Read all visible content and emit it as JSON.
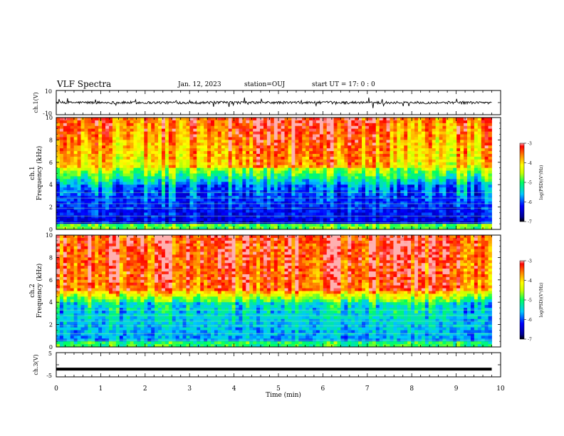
{
  "header": {
    "title": "VLF Spectra",
    "date": "Jan. 12, 2023",
    "station": "station=OUJ",
    "start": "start  UT =  17: 0  : 0"
  },
  "chart_data": [
    {
      "type": "line",
      "ylabel": "ch.1(V)",
      "ylim": [
        -10,
        10
      ],
      "yticks": [
        "10",
        "-10"
      ],
      "description_series": [
        {
          "values": [
            0
          ]
        }
      ],
      "xlim": [
        0,
        10
      ],
      "data_xmax": 9.8
    },
    {
      "type": "heatmap",
      "ylabel_line1": "ch.1",
      "ylabel_line2": "Frequency  (kHz)",
      "ylim": [
        0,
        10
      ],
      "yticks": [
        "0",
        "2",
        "4",
        "6",
        "8",
        "10"
      ],
      "xlim": [
        0,
        10
      ],
      "data_xmax": 9.8,
      "colorbar": {
        "label": "log(PSD)(V²/Hz)",
        "range": [
          -7,
          -3
        ],
        "ticks": [
          "-3",
          "-4",
          "-5",
          "-6",
          "-7"
        ]
      }
    },
    {
      "type": "heatmap",
      "ylabel_line1": "ch.2",
      "ylabel_line2": "Frequency  (kHz)",
      "ylim": [
        0,
        10
      ],
      "yticks": [
        "0",
        "2",
        "4",
        "6",
        "8",
        "10"
      ],
      "xlim": [
        0,
        10
      ],
      "data_xmax": 9.8,
      "colorbar": {
        "label": "log(PSD)(V²/Hz)",
        "range": [
          -7,
          -3
        ],
        "ticks": [
          "-3",
          "-4",
          "-5",
          "-6",
          "-7"
        ]
      }
    },
    {
      "type": "line",
      "ylabel": "ch.3(V)",
      "ylim": [
        -5,
        5
      ],
      "yticks": [
        "5",
        "-5"
      ],
      "series": [
        {
          "values": [
            -1.8
          ]
        }
      ],
      "xlim": [
        0,
        10
      ],
      "data_xmax": 9.8
    }
  ],
  "xaxis": {
    "label": "Time  (min)",
    "ticks": [
      "0",
      "1",
      "2",
      "3",
      "4",
      "5",
      "6",
      "7",
      "8",
      "9",
      "10"
    ]
  }
}
